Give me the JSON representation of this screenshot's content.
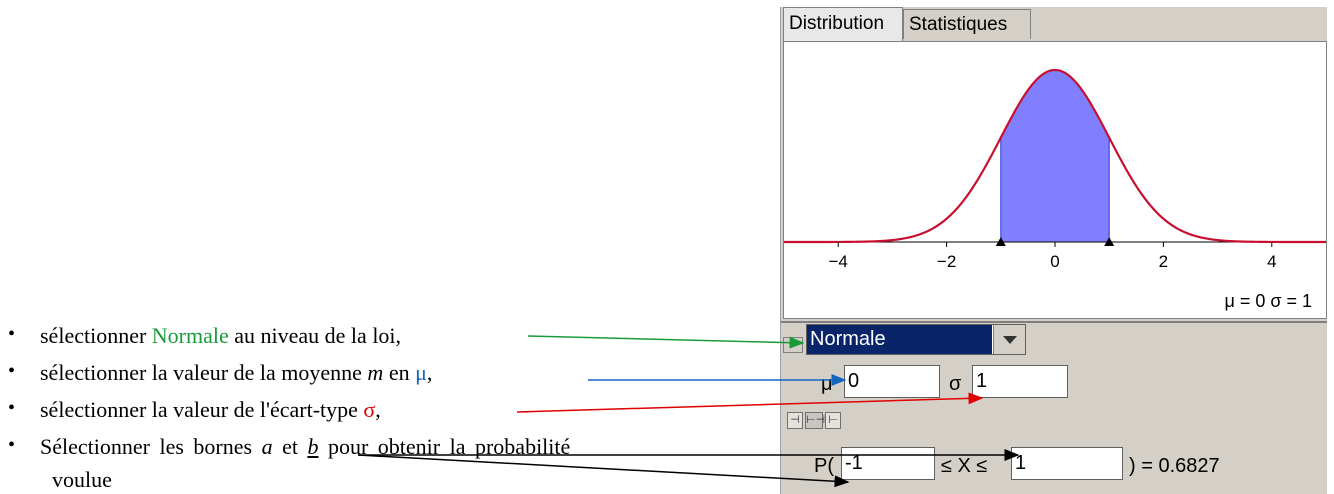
{
  "instructions": {
    "items": [
      {
        "bullet": "•",
        "pre": "sélectionner ",
        "highlight": "Normale",
        "post": " au niveau de la loi,"
      },
      {
        "bullet": "•",
        "pre": "sélectionner la valeur de la moyenne ",
        "var": "m",
        "mid": " en ",
        "highlight": "μ",
        "post": ","
      },
      {
        "bullet": "•",
        "pre": "sélectionner la valeur de l'écart-type ",
        "highlight": "σ",
        "post": ","
      },
      {
        "bullet": "•",
        "pre": "Sélectionner les bornes ",
        "var_a": "a",
        "mid_a": " et ",
        "var_b": "b",
        "post": " pour obtenir la probabilité",
        "line2": "voulue"
      }
    ]
  },
  "panel": {
    "tabs": [
      {
        "label": "Distribution",
        "active": true
      },
      {
        "label": "Statistiques",
        "active": false
      }
    ],
    "distribution_select": "Normale",
    "mu_label": "μ",
    "mu_value": "0",
    "sigma_label": "σ",
    "sigma_value": "1",
    "readout": "μ = 0   σ = 1",
    "prob_prefix": "P(",
    "lower_bound": "-1",
    "ineq_label": "≤ X ≤",
    "upper_bound": "1",
    "result": ") = 0.6827",
    "mode_buttons": [
      "⊣",
      "⊢⊣",
      "⊢"
    ]
  },
  "chart_data": {
    "type": "area",
    "xlim": [
      -5,
      5
    ],
    "ylim": [
      0,
      0.45
    ],
    "xticks": [
      -4,
      -2,
      0,
      2,
      4
    ],
    "xtick_labels": [
      "−4",
      "−2",
      "0",
      "2",
      "4"
    ],
    "mu": 0,
    "sigma": 1,
    "shaded_interval": [
      -1,
      1
    ],
    "curve_color": "#c8102e",
    "fill_color": "#8080ff"
  }
}
